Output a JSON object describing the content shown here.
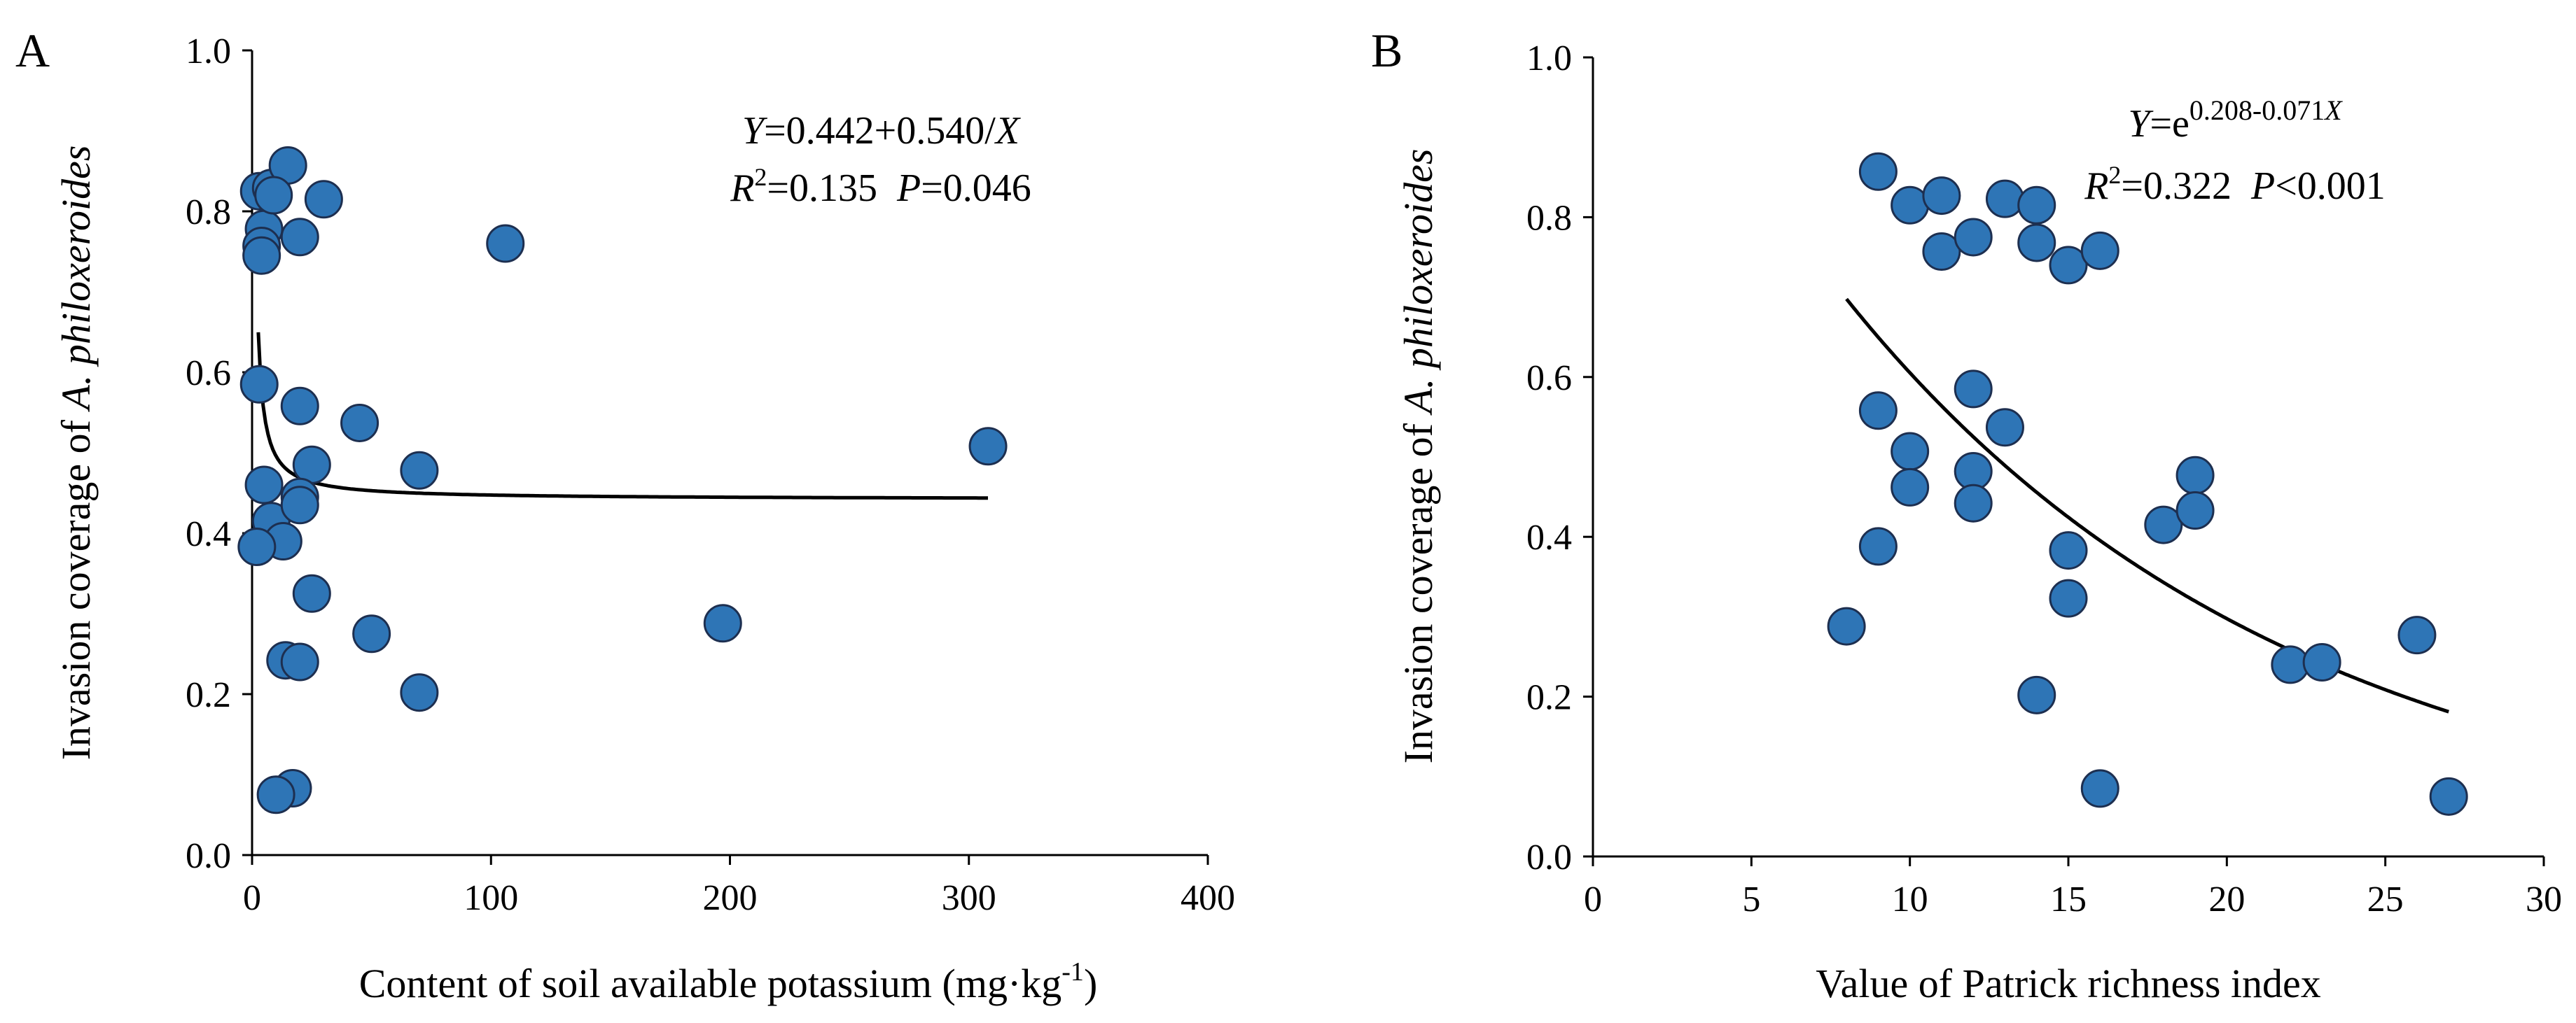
{
  "chart_data": [
    {
      "panel": "A",
      "type": "scatter",
      "xlabel": "Content of soil available potassium (mg·kg",
      "xlabel_sup": "-1",
      "xlabel_end": ")",
      "ylabel_prefix": "Invasion coverage of ",
      "ylabel_species": "A. philoxeroides",
      "xlim": [
        0,
        400
      ],
      "ylim": [
        0,
        1.0
      ],
      "xticks": [
        0,
        100,
        200,
        300,
        400
      ],
      "yticks": [
        "0.0",
        "0.2",
        "0.4",
        "0.6",
        "0.8",
        "1.0"
      ],
      "equation": {
        "line1": {
          "y": "Y",
          "rhs": "=0.442+0.540/",
          "x": "X"
        },
        "line2": {
          "r": "R",
          "r_sup": "2",
          "r_val": "=0.135",
          "p": "P",
          "p_val": "=0.046"
        }
      },
      "fit": {
        "model": "a+b/x",
        "a": 0.442,
        "b": 0.54,
        "x_range": [
          2.6,
          308
        ]
      },
      "point_color": "#2E75B6",
      "x": [
        3,
        5,
        4,
        4,
        8,
        15,
        9,
        20,
        30,
        106,
        3,
        20,
        45,
        25,
        70,
        5,
        8,
        13,
        20,
        2,
        20,
        25,
        50,
        14,
        20,
        70,
        17,
        10,
        308,
        197
      ],
      "y": [
        0.825,
        0.778,
        0.757,
        0.745,
        0.829,
        0.857,
        0.82,
        0.768,
        0.815,
        0.76,
        0.585,
        0.558,
        0.537,
        0.485,
        0.478,
        0.46,
        0.415,
        0.39,
        0.445,
        0.383,
        0.435,
        0.325,
        0.275,
        0.242,
        0.24,
        0.202,
        0.083,
        0.075,
        0.508,
        0.288
      ]
    },
    {
      "panel": "B",
      "type": "scatter",
      "xlabel": "Value of Patrick richness index",
      "ylabel_prefix": "Invasion coverage of ",
      "ylabel_species": "A. philoxeroides",
      "xlim": [
        0,
        30
      ],
      "ylim": [
        0,
        1.0
      ],
      "xticks": [
        0,
        5,
        10,
        15,
        20,
        25,
        30
      ],
      "yticks": [
        "0.0",
        "0.2",
        "0.4",
        "0.6",
        "0.8",
        "1.0"
      ],
      "equation": {
        "line1": {
          "y": "Y",
          "eq": "=e",
          "exp_num": "0.208-0.071",
          "exp_x": "X"
        },
        "line2": {
          "r": "R",
          "r_sup": "2",
          "r_val": "=0.322",
          "p": "P",
          "p_val": "<0.001"
        }
      },
      "fit": {
        "model": "exp(a+b*x)",
        "a": 0.208,
        "b": -0.071,
        "x_range": [
          8,
          27
        ]
      },
      "point_color": "#2E75B6",
      "x": [
        9,
        10,
        11,
        11,
        12,
        13,
        14,
        14,
        15,
        16,
        9,
        12,
        9,
        10,
        10,
        12,
        12,
        13,
        15,
        15,
        14,
        16,
        18,
        19,
        19,
        22,
        23,
        26,
        27,
        8
      ],
      "y": [
        0.857,
        0.815,
        0.827,
        0.757,
        0.775,
        0.823,
        0.815,
        0.768,
        0.74,
        0.758,
        0.558,
        0.585,
        0.388,
        0.507,
        0.462,
        0.482,
        0.442,
        0.537,
        0.383,
        0.323,
        0.202,
        0.085,
        0.415,
        0.477,
        0.433,
        0.24,
        0.243,
        0.277,
        0.075,
        0.288
      ]
    }
  ]
}
